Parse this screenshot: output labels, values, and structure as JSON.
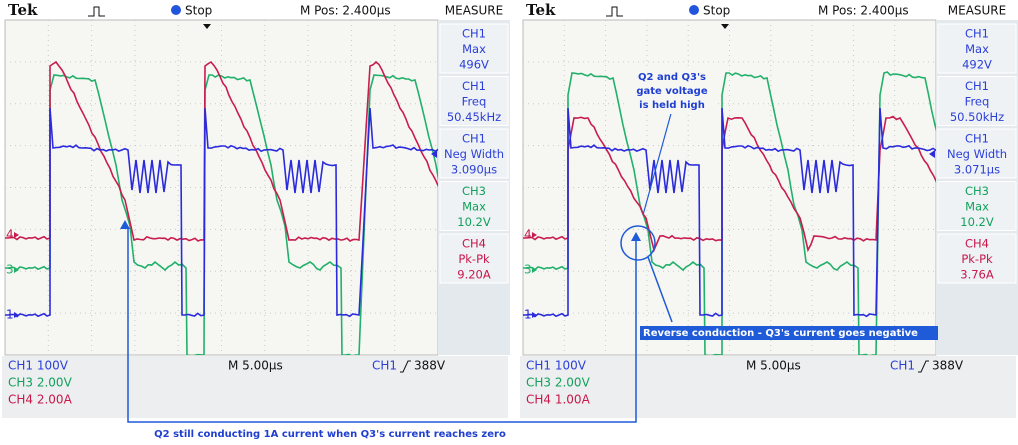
{
  "scopes": [
    {
      "brand": "Tek",
      "state": "Stop",
      "mpos": "M Pos: 2.400µs",
      "measure_title": "MEASURE",
      "measurements": [
        {
          "channel": "CH1",
          "name": "Max",
          "value": "496V",
          "color": "#2b3fd8"
        },
        {
          "channel": "CH1",
          "name": "Freq",
          "value": "50.45kHz",
          "color": "#2b3fd8"
        },
        {
          "channel": "CH1",
          "name": "Neg Width",
          "value": "3.090µs",
          "color": "#2b3fd8"
        },
        {
          "channel": "CH3",
          "name": "Max",
          "value": "10.2V",
          "color": "#13a05a"
        },
        {
          "channel": "CH4",
          "name": "Pk-Pk",
          "value": "9.20A",
          "color": "#c8184a"
        }
      ],
      "status": [
        {
          "text": "CH1 100V",
          "color": "#2b3fd8"
        },
        {
          "text": "CH3 2.00V",
          "color": "#13a05a"
        },
        {
          "text": "CH4 2.00A",
          "color": "#c8184a"
        }
      ],
      "timebase": "M 5.00µs",
      "trigger_channel": "CH1",
      "trigger_level": "388V",
      "markers": [
        "4",
        "3",
        "1"
      ]
    },
    {
      "brand": "Tek",
      "state": "Stop",
      "mpos": "M Pos: 2.400µs",
      "measure_title": "MEASURE",
      "measurements": [
        {
          "channel": "CH1",
          "name": "Max",
          "value": "492V",
          "color": "#2b3fd8"
        },
        {
          "channel": "CH1",
          "name": "Freq",
          "value": "50.50kHz",
          "color": "#2b3fd8"
        },
        {
          "channel": "CH1",
          "name": "Neg Width",
          "value": "3.071µs",
          "color": "#2b3fd8"
        },
        {
          "channel": "CH3",
          "name": "Max",
          "value": "10.2V",
          "color": "#13a05a"
        },
        {
          "channel": "CH4",
          "name": "Pk-Pk",
          "value": "3.76A",
          "color": "#c8184a"
        }
      ],
      "status": [
        {
          "text": "CH1 100V",
          "color": "#2b3fd8"
        },
        {
          "text": "CH3 2.00V",
          "color": "#13a05a"
        },
        {
          "text": "CH4 1.00A",
          "color": "#c8184a"
        }
      ],
      "timebase": "M 5.00µs",
      "trigger_channel": "CH1",
      "trigger_level": "388V",
      "markers": [
        "4",
        "3",
        "1"
      ]
    }
  ],
  "annotations": {
    "caption": "Q2 still conducting 1A current when Q3's current reaches zero",
    "gate_note": [
      "Q2 and Q3's",
      "gate voltage",
      "is held high"
    ],
    "reverse_note": "Reverse conduction - Q3's current goes negative"
  }
}
